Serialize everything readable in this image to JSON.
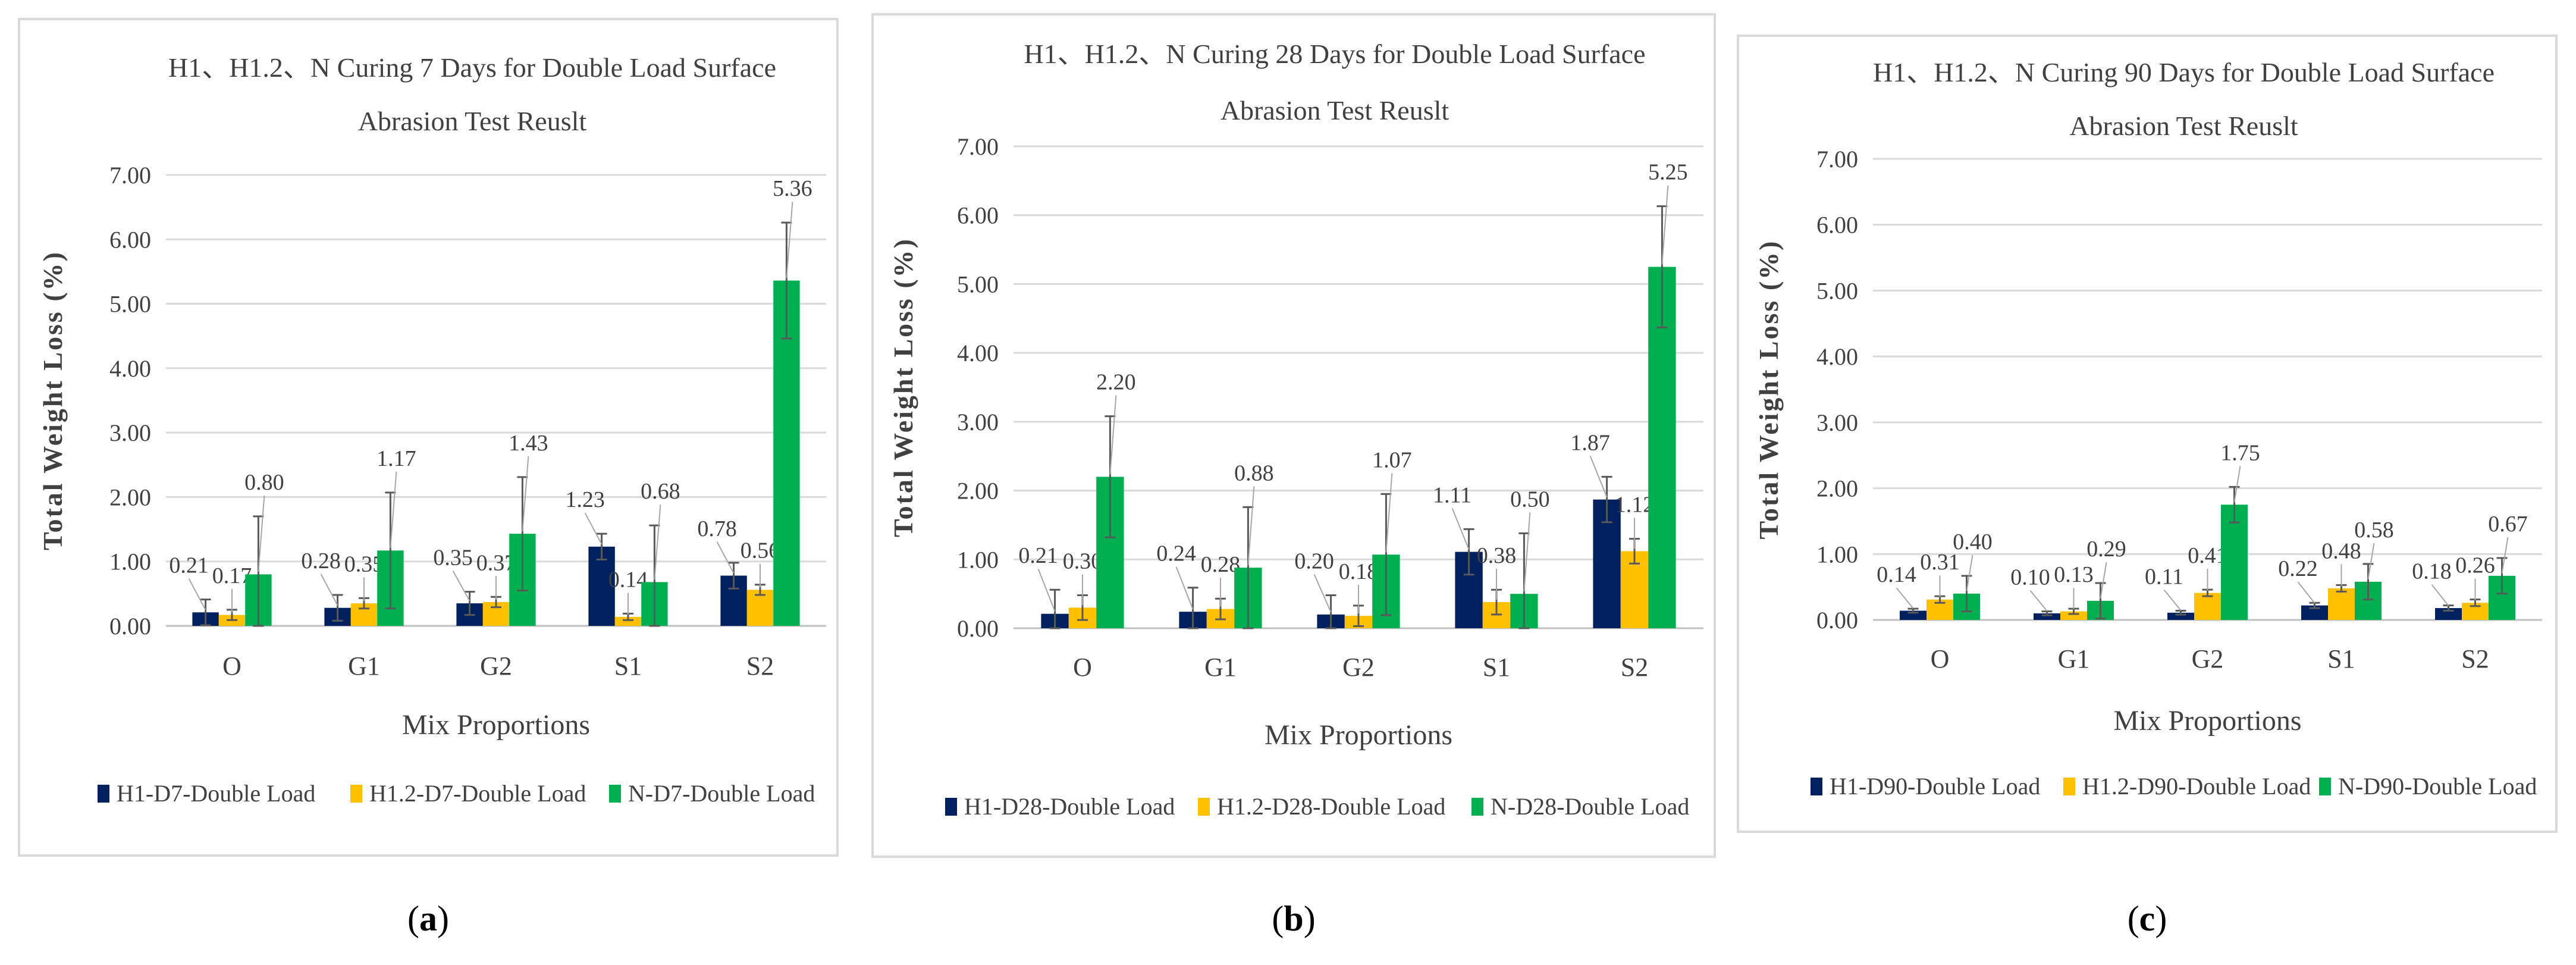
{
  "captions": [
    "(a)",
    "(b)",
    "(c)"
  ],
  "caption_letters": [
    "a",
    "b",
    "c"
  ],
  "colors": {
    "H1": "#002060",
    "H1.2": "#ffc000",
    "N": "#00b050",
    "grid": "#d9d9d9",
    "text": "#404040",
    "error": "#595959"
  },
  "chart_data": [
    {
      "type": "bar",
      "title": "H1、H1.2、N  Curing 7 Days for Double Load Surface",
      "subtitle": "Abrasion  Test Reuslt",
      "xlabel": "Mix Proportions",
      "ylabel": "Total Weight Loss (%)",
      "ylim": [
        0,
        7
      ],
      "yticks": [
        "0.00",
        "1.00",
        "2.00",
        "3.00",
        "4.00",
        "5.00",
        "6.00",
        "7.00"
      ],
      "categories": [
        "O",
        "G1",
        "G2",
        "S1",
        "S2"
      ],
      "grid": true,
      "legend_position": "bottom",
      "series": [
        {
          "name": "H1-D7-Double Load",
          "color_key": "H1",
          "values": [
            0.21,
            0.28,
            0.35,
            1.23,
            0.78
          ],
          "labels": [
            "0.21",
            "0.28",
            "0.35",
            "1.23",
            "0.78"
          ],
          "errors": [
            0.2,
            0.2,
            0.18,
            0.2,
            0.2
          ]
        },
        {
          "name": "H1.2-D7-Double Load",
          "color_key": "H1.2",
          "values": [
            0.17,
            0.35,
            0.37,
            0.14,
            0.56
          ],
          "labels": [
            "0.17",
            "0.35",
            "0.37",
            "0.14",
            "0.56"
          ],
          "errors": [
            0.08,
            0.08,
            0.08,
            0.05,
            0.08
          ]
        },
        {
          "name": "N-D7-Double Load",
          "color_key": "N",
          "values": [
            0.8,
            1.17,
            1.43,
            0.68,
            5.36
          ],
          "labels": [
            "0.80",
            "1.17",
            "1.43",
            "0.68",
            "5.36"
          ],
          "errors": [
            0.9,
            0.9,
            0.88,
            0.88,
            0.9
          ]
        }
      ]
    },
    {
      "type": "bar",
      "title": "H1、H1.2、N  Curing 28 Days for Double Load Surface",
      "subtitle": "Abrasion  Test Reuslt",
      "xlabel": "Mix Proportions",
      "ylabel": "Total Weight Loss (%)",
      "ylim": [
        0,
        7
      ],
      "yticks": [
        "0.00",
        "1.00",
        "2.00",
        "3.00",
        "4.00",
        "5.00",
        "6.00",
        "7.00"
      ],
      "categories": [
        "O",
        "G1",
        "G2",
        "S1",
        "S2"
      ],
      "grid": true,
      "legend_position": "bottom",
      "series": [
        {
          "name": "H1-D28-Double Load",
          "color_key": "H1",
          "values": [
            0.21,
            0.24,
            0.2,
            1.11,
            1.87
          ],
          "labels": [
            "0.21",
            "0.24",
            "0.20",
            "1.11",
            "1.87"
          ],
          "errors": [
            0.35,
            0.35,
            0.28,
            0.33,
            0.33
          ]
        },
        {
          "name": "H1.2-D28-Double Load",
          "color_key": "H1.2",
          "values": [
            0.3,
            0.28,
            0.18,
            0.38,
            1.12
          ],
          "labels": [
            "0.30",
            "0.28",
            "0.18",
            "0.38",
            "1.12"
          ],
          "errors": [
            0.18,
            0.15,
            0.15,
            0.18,
            0.18
          ]
        },
        {
          "name": "N-D28-Double Load",
          "color_key": "N",
          "values": [
            2.2,
            0.88,
            1.07,
            0.5,
            5.25
          ],
          "labels": [
            "2.20",
            "0.88",
            "1.07",
            "0.50",
            "5.25"
          ],
          "errors": [
            0.88,
            0.88,
            0.88,
            0.88,
            0.88
          ]
        }
      ]
    },
    {
      "type": "bar",
      "title": "H1、H1.2、N  Curing 90 Days for Double Load Surface",
      "subtitle": "Abrasion  Test Reuslt",
      "xlabel": "Mix Proportions",
      "ylabel": "Total Weight Loss (%)",
      "ylim": [
        0,
        7
      ],
      "yticks": [
        "0.00",
        "1.00",
        "2.00",
        "3.00",
        "4.00",
        "5.00",
        "6.00",
        "7.00"
      ],
      "categories": [
        "O",
        "G1",
        "G2",
        "S1",
        "S2"
      ],
      "grid": true,
      "legend_position": "bottom",
      "series": [
        {
          "name": "H1-D90-Double Load",
          "color_key": "H1",
          "values": [
            0.14,
            0.1,
            0.11,
            0.22,
            0.18
          ],
          "labels": [
            "0.14",
            "0.10",
            "0.11",
            "0.22",
            "0.18"
          ],
          "errors": [
            0.03,
            0.03,
            0.03,
            0.04,
            0.04
          ]
        },
        {
          "name": "H1.2-D90-Double Load",
          "color_key": "H1.2",
          "values": [
            0.31,
            0.13,
            0.41,
            0.48,
            0.26
          ],
          "labels": [
            "0.31",
            "0.13",
            "0.41",
            "0.48",
            "0.26"
          ],
          "errors": [
            0.05,
            0.04,
            0.05,
            0.05,
            0.05
          ]
        },
        {
          "name": "N-D90-Double Load",
          "color_key": "N",
          "values": [
            0.4,
            0.29,
            1.75,
            0.58,
            0.67
          ],
          "labels": [
            "0.40",
            "0.29",
            "1.75",
            "0.58",
            "0.67"
          ],
          "errors": [
            0.27,
            0.27,
            0.27,
            0.27,
            0.27
          ]
        }
      ]
    }
  ]
}
